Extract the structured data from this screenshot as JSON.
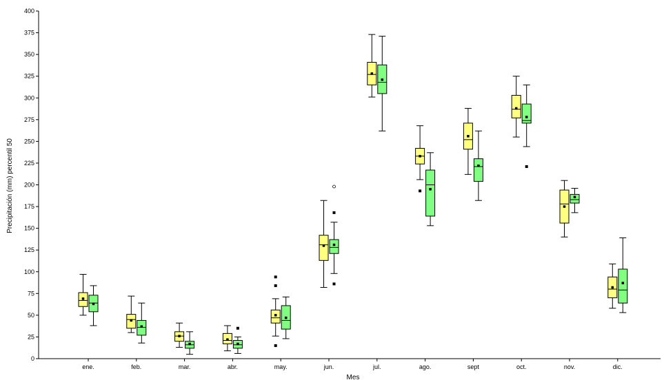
{
  "chart_data": {
    "type": "box",
    "xlabel": "Mes",
    "ylabel": "Precipitación (mm) percentil 50",
    "ylim": [
      0,
      400
    ],
    "yticks": [
      0,
      25,
      50,
      75,
      100,
      125,
      150,
      175,
      200,
      225,
      250,
      275,
      300,
      325,
      350,
      375,
      400
    ],
    "categories": [
      "ene.",
      "feb.",
      "mar.",
      "abr.",
      "may.",
      "jun.",
      "jul.",
      "ago.",
      "sept",
      "oct.",
      "nov.",
      "dic."
    ],
    "grid": false,
    "legend": "none",
    "series": [
      {
        "color": "#ffff80",
        "boxes": [
          {
            "whisker_low": 50,
            "q1": 60,
            "median": 67,
            "q3": 76,
            "whisker_high": 97,
            "mean": 69,
            "outliers": []
          },
          {
            "whisker_low": 30,
            "q1": 35,
            "median": 45,
            "q3": 51,
            "whisker_high": 72,
            "mean": 44,
            "outliers": []
          },
          {
            "whisker_low": 13,
            "q1": 20,
            "median": 26,
            "q3": 31,
            "whisker_high": 41,
            "mean": 26,
            "outliers": []
          },
          {
            "whisker_low": 9,
            "q1": 17,
            "median": 21,
            "q3": 29,
            "whisker_high": 38,
            "mean": 22,
            "outliers": []
          },
          {
            "whisker_low": 26,
            "q1": 41,
            "median": 47,
            "q3": 56,
            "whisker_high": 69,
            "mean": 50,
            "outliers": [
              94,
              84,
              15
            ]
          },
          {
            "whisker_low": 82,
            "q1": 113,
            "median": 131,
            "q3": 142,
            "whisker_high": 182,
            "mean": 130,
            "outliers": []
          },
          {
            "whisker_low": 301,
            "q1": 315,
            "median": 327,
            "q3": 341,
            "whisker_high": 373,
            "mean": 328,
            "outliers": []
          },
          {
            "whisker_low": 206,
            "q1": 224,
            "median": 233,
            "q3": 242,
            "whisker_high": 268,
            "mean": 233,
            "outliers": [
              193
            ]
          },
          {
            "whisker_low": 212,
            "q1": 241,
            "median": 252,
            "q3": 271,
            "whisker_high": 288,
            "mean": 256,
            "outliers": []
          },
          {
            "whisker_low": 255,
            "q1": 277,
            "median": 287,
            "q3": 303,
            "whisker_high": 325,
            "mean": 288,
            "outliers": []
          },
          {
            "whisker_low": 140,
            "q1": 156,
            "median": 178,
            "q3": 194,
            "whisker_high": 205,
            "mean": 175,
            "outliers": []
          },
          {
            "whisker_low": 58,
            "q1": 70,
            "median": 80,
            "q3": 94,
            "whisker_high": 109,
            "mean": 82,
            "outliers": []
          }
        ]
      },
      {
        "color": "#80ff80",
        "boxes": [
          {
            "whisker_low": 38,
            "q1": 54,
            "median": 64,
            "q3": 73,
            "whisker_high": 84,
            "mean": 63,
            "outliers": []
          },
          {
            "whisker_low": 18,
            "q1": 27,
            "median": 36,
            "q3": 44,
            "whisker_high": 64,
            "mean": 37,
            "outliers": []
          },
          {
            "whisker_low": 5,
            "q1": 12,
            "median": 16,
            "q3": 20,
            "whisker_high": 31,
            "mean": 17,
            "outliers": []
          },
          {
            "whisker_low": 6,
            "q1": 12,
            "median": 16,
            "q3": 21,
            "whisker_high": 25,
            "mean": 17,
            "outliers": [
              35
            ]
          },
          {
            "whisker_low": 23,
            "q1": 34,
            "median": 44,
            "q3": 61,
            "whisker_high": 71,
            "mean": 47,
            "outliers": []
          },
          {
            "whisker_low": 98,
            "q1": 121,
            "median": 128,
            "q3": 137,
            "whisker_high": 157,
            "mean": 131,
            "outliers": [
              168,
              86
            ],
            "extreme_outliers": [
              198
            ]
          },
          {
            "whisker_low": 262,
            "q1": 305,
            "median": 318,
            "q3": 338,
            "whisker_high": 371,
            "mean": 321,
            "outliers": []
          },
          {
            "whisker_low": 153,
            "q1": 164,
            "median": 200,
            "q3": 217,
            "whisker_high": 237,
            "mean": 195,
            "outliers": []
          },
          {
            "whisker_low": 182,
            "q1": 204,
            "median": 221,
            "q3": 230,
            "whisker_high": 262,
            "mean": 222,
            "outliers": []
          },
          {
            "whisker_low": 244,
            "q1": 271,
            "median": 274,
            "q3": 293,
            "whisker_high": 315,
            "mean": 278,
            "outliers": [
              221
            ]
          },
          {
            "whisker_low": 168,
            "q1": 179,
            "median": 183,
            "q3": 189,
            "whisker_high": 196,
            "mean": 186,
            "outliers": []
          },
          {
            "whisker_low": 53,
            "q1": 64,
            "median": 79,
            "q3": 103,
            "whisker_high": 139,
            "mean": 87,
            "outliers": []
          }
        ]
      }
    ]
  }
}
